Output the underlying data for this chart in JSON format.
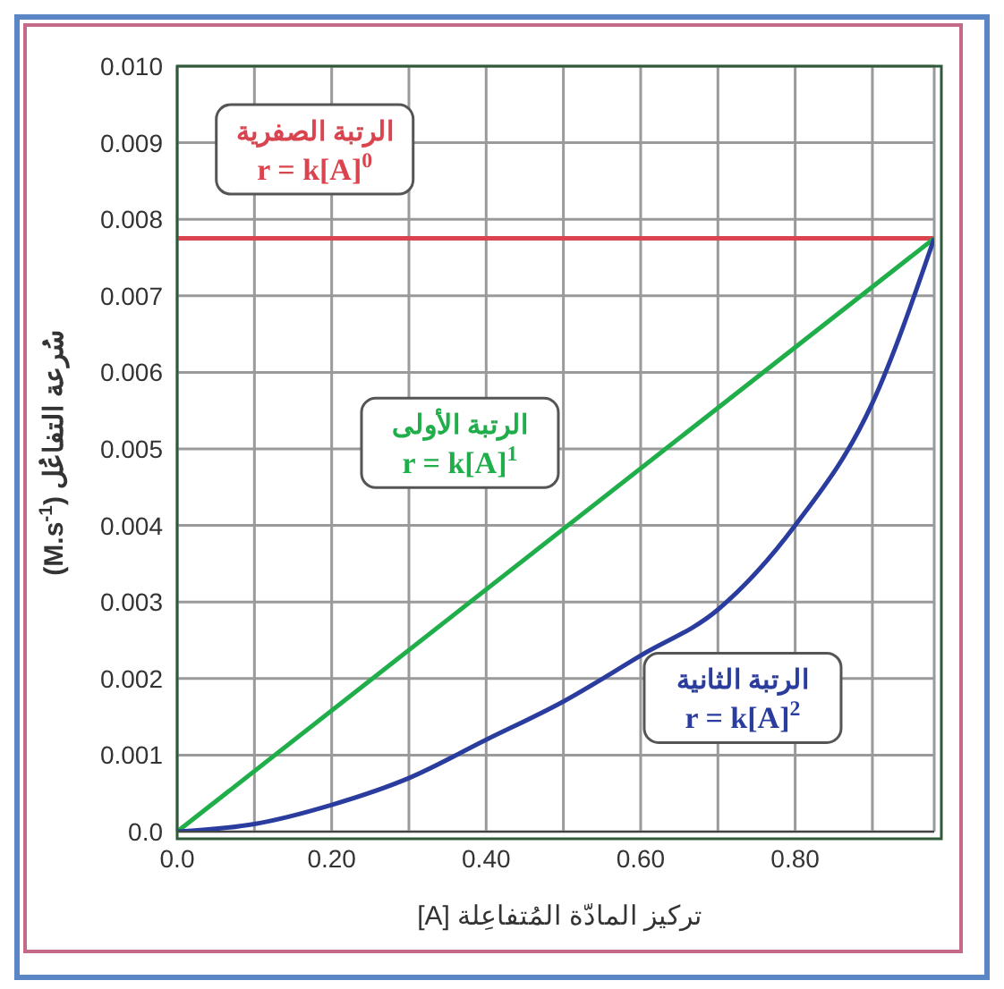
{
  "chart_data": {
    "type": "line",
    "xlabel": "تركيز المادّة المُتفاعِلة [A]",
    "ylabel": "سُرعة التفاعُل (M.s$^{-1}$)",
    "xlim": [
      0,
      0.98
    ],
    "xticks": [
      {
        "value": 0,
        "label": "0.0"
      },
      {
        "value": 0.1,
        "label": null
      },
      {
        "value": 0.2,
        "label": "0.20"
      },
      {
        "value": 0.3,
        "label": null
      },
      {
        "value": 0.4,
        "label": "0.40"
      },
      {
        "value": 0.5,
        "label": null
      },
      {
        "value": 0.6,
        "label": "0.60"
      },
      {
        "value": 0.7,
        "label": null
      },
      {
        "value": 0.8,
        "label": "0.80"
      },
      {
        "value": 0.9,
        "label": null
      }
    ],
    "ylim": [
      0,
      0.01
    ],
    "yticks": [
      {
        "value": 0,
        "label": "0.0"
      },
      0.001,
      0.002,
      0.003,
      0.004,
      0.005,
      0.006,
      0.007,
      0.008,
      0.009,
      {
        "value": 0.01,
        "label": "0.010"
      }
    ],
    "grid": true,
    "marker": "none",
    "line_style": "solid",
    "series": [
      {
        "name": "الرتبة الصفرية",
        "color": "#d9444f",
        "x": [
          0,
          0.98
        ],
        "values": [
          0.00775,
          0.00775
        ]
      },
      {
        "name": "الرتبة الأولى",
        "color": "#1fae4a",
        "x": [
          0,
          0.98
        ],
        "values": [
          0,
          0.00775
        ]
      },
      {
        "name": "الرتبة الثانية",
        "color": "#2a3d9e",
        "x": [
          0,
          0.1,
          0.2,
          0.3,
          0.4,
          0.5,
          0.6,
          0.7,
          0.8,
          0.9,
          0.98
        ],
        "values": [
          0,
          0.0001,
          0.00035,
          0.0007,
          0.0012,
          0.0017,
          0.0023,
          0.0029,
          0.004,
          0.0056,
          0.00775
        ]
      }
    ],
    "annotations": [
      "r = k[A]$^{0}$",
      "r = k[A]$^{1}$",
      "r = k[A]$^{2}$"
    ]
  }
}
